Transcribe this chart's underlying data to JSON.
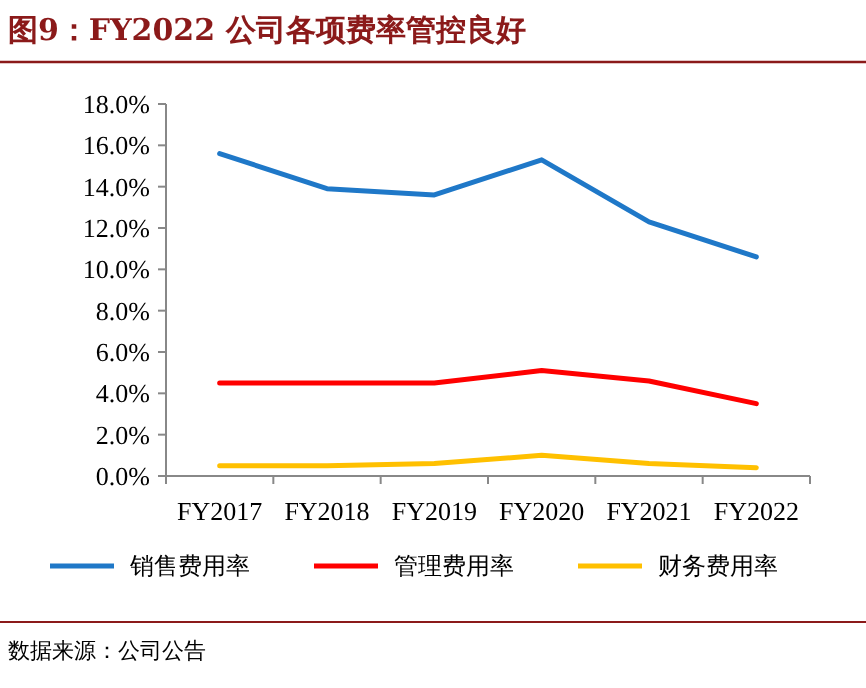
{
  "chart_data": {
    "type": "line",
    "title": "图9：FY2022 公司各项费率管控良好",
    "categories": [
      "FY2017",
      "FY2018",
      "FY2019",
      "FY2020",
      "FY2021",
      "FY2022"
    ],
    "series": [
      {
        "name": "销售费用率",
        "color": "#1f78c8",
        "values": [
          15.6,
          13.9,
          13.6,
          15.3,
          12.3,
          10.6
        ]
      },
      {
        "name": "管理费用率",
        "color": "#ff0000",
        "values": [
          4.5,
          4.5,
          4.5,
          5.1,
          4.6,
          3.5
        ]
      },
      {
        "name": "财务费用率",
        "color": "#ffc000",
        "values": [
          0.5,
          0.5,
          0.6,
          1.0,
          0.6,
          0.4
        ]
      }
    ],
    "ylim": [
      0,
      18
    ],
    "yticks": [
      {
        "value": 0,
        "label": "0.0%"
      },
      {
        "value": 2,
        "label": "2.0%"
      },
      {
        "value": 4,
        "label": "4.0%"
      },
      {
        "value": 6,
        "label": "6.0%"
      },
      {
        "value": 8,
        "label": "8.0%"
      },
      {
        "value": 10,
        "label": "10.0%"
      },
      {
        "value": 12,
        "label": "12.0%"
      },
      {
        "value": 14,
        "label": "14.0%"
      },
      {
        "value": 16,
        "label": "16.0%"
      },
      {
        "value": 18,
        "label": "18.0%"
      }
    ],
    "grid": false,
    "legend": "bottom",
    "marker": "none",
    "line_style": "solid",
    "annotations": [
      "数据来源：公司公告"
    ]
  }
}
